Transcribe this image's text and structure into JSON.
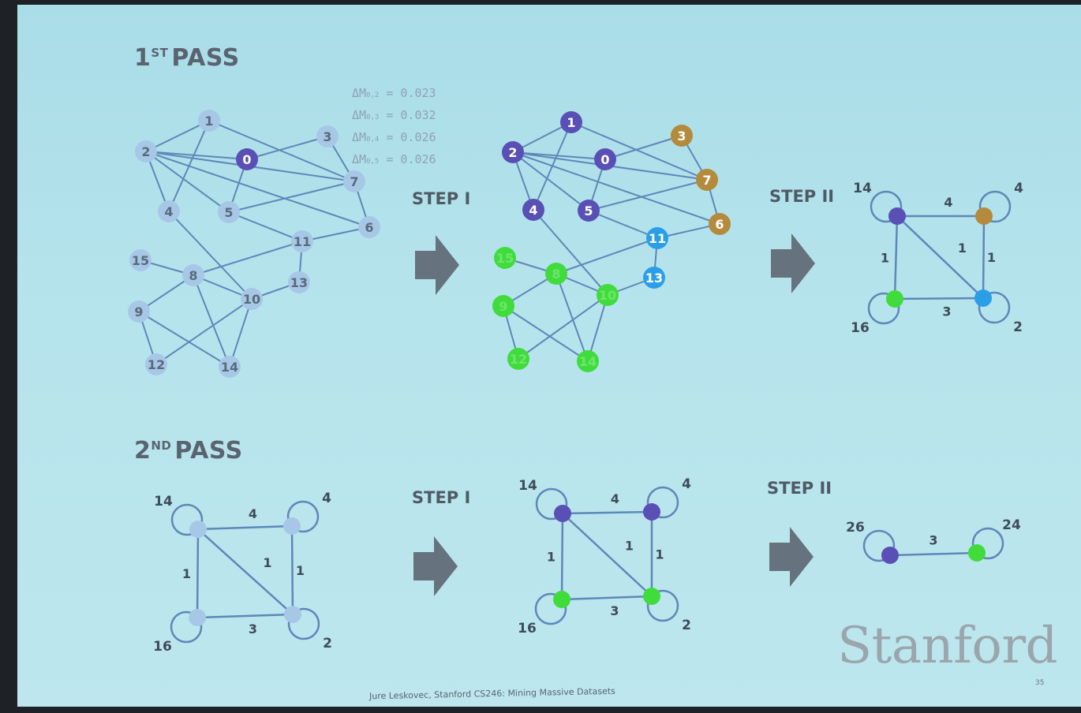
{
  "slide": {
    "pass1_title": "1",
    "pass1_title_sup": "ST",
    "pass1_title_rest": "PASS",
    "pass2_title": "2",
    "pass2_title_sup": "ND",
    "pass2_title_rest": "PASS",
    "step1_label": "STEP I",
    "step2_label": "STEP II",
    "brand": "Stanford",
    "footer": "Jure Leskovec, Stanford CS246: Mining Massive Datasets",
    "page_number": "35"
  },
  "delta_m": [
    {
      "prefix": "ΔM",
      "sub": "0,2",
      "value": "= 0.023"
    },
    {
      "prefix": "ΔM",
      "sub": "0,3",
      "value": "= 0.032"
    },
    {
      "prefix": "ΔM",
      "sub": "0,4",
      "value": "= 0.026"
    },
    {
      "prefix": "ΔM",
      "sub": "0,5",
      "value": "= 0.026"
    }
  ],
  "colors": {
    "edge": "#5f87b8",
    "node_plain": "#a6c8e6",
    "purple": "#5a4fb5",
    "gold": "#b48a3c",
    "blue": "#2b9ee8",
    "green": "#40dc3c",
    "label_text": "#3d4b5a",
    "node_label_dark": "#5a6a7c",
    "node_label_light": "#ffffff"
  },
  "graphs": {
    "pass1_input": {
      "nodes": [
        {
          "id": "0",
          "label": "0",
          "color": "purple"
        },
        {
          "id": "1",
          "label": "1",
          "color": "plain"
        },
        {
          "id": "2",
          "label": "2",
          "color": "plain"
        },
        {
          "id": "3",
          "label": "3",
          "color": "plain"
        },
        {
          "id": "4",
          "label": "4",
          "color": "plain"
        },
        {
          "id": "5",
          "label": "5",
          "color": "plain"
        },
        {
          "id": "6",
          "label": "6",
          "color": "plain"
        },
        {
          "id": "7",
          "label": "7",
          "color": "plain"
        },
        {
          "id": "8",
          "label": "8",
          "color": "plain"
        },
        {
          "id": "9",
          "label": "9",
          "color": "plain"
        },
        {
          "id": "10",
          "label": "10",
          "color": "plain"
        },
        {
          "id": "11",
          "label": "11",
          "color": "plain"
        },
        {
          "id": "12",
          "label": "12",
          "color": "plain"
        },
        {
          "id": "13",
          "label": "13",
          "color": "plain"
        },
        {
          "id": "14",
          "label": "14",
          "color": "plain"
        },
        {
          "id": "15",
          "label": "15",
          "color": "plain"
        }
      ],
      "edges": [
        [
          "2",
          "1"
        ],
        [
          "2",
          "0"
        ],
        [
          "2",
          "4"
        ],
        [
          "2",
          "7"
        ],
        [
          "2",
          "6"
        ],
        [
          "2",
          "5"
        ],
        [
          "1",
          "4"
        ],
        [
          "1",
          "7"
        ],
        [
          "0",
          "3"
        ],
        [
          "0",
          "5"
        ],
        [
          "3",
          "7"
        ],
        [
          "7",
          "5"
        ],
        [
          "7",
          "6"
        ],
        [
          "4",
          "10"
        ],
        [
          "5",
          "11"
        ],
        [
          "11",
          "6"
        ],
        [
          "11",
          "8"
        ],
        [
          "11",
          "13"
        ],
        [
          "8",
          "15"
        ],
        [
          "8",
          "9"
        ],
        [
          "8",
          "10"
        ],
        [
          "8",
          "14"
        ],
        [
          "10",
          "13"
        ],
        [
          "10",
          "12"
        ],
        [
          "10",
          "14"
        ],
        [
          "9",
          "12"
        ],
        [
          "9",
          "14"
        ]
      ]
    },
    "pass1_step1": {
      "nodes": [
        {
          "id": "0",
          "label": "0",
          "color": "purple"
        },
        {
          "id": "1",
          "label": "1",
          "color": "purple"
        },
        {
          "id": "2",
          "label": "2",
          "color": "purple"
        },
        {
          "id": "3",
          "label": "3",
          "color": "gold"
        },
        {
          "id": "4",
          "label": "4",
          "color": "purple"
        },
        {
          "id": "5",
          "label": "5",
          "color": "purple"
        },
        {
          "id": "6",
          "label": "6",
          "color": "gold"
        },
        {
          "id": "7",
          "label": "7",
          "color": "gold"
        },
        {
          "id": "8",
          "label": "8",
          "color": "green"
        },
        {
          "id": "9",
          "label": "9",
          "color": "green"
        },
        {
          "id": "10",
          "label": "10",
          "color": "green"
        },
        {
          "id": "11",
          "label": "11",
          "color": "blue"
        },
        {
          "id": "12",
          "label": "12",
          "color": "green"
        },
        {
          "id": "13",
          "label": "13",
          "color": "blue"
        },
        {
          "id": "14",
          "label": "14",
          "color": "green"
        },
        {
          "id": "15",
          "label": "15",
          "color": "green"
        }
      ],
      "edges": [
        [
          "2",
          "1"
        ],
        [
          "2",
          "0"
        ],
        [
          "2",
          "4"
        ],
        [
          "2",
          "7"
        ],
        [
          "2",
          "6"
        ],
        [
          "2",
          "5"
        ],
        [
          "1",
          "4"
        ],
        [
          "1",
          "7"
        ],
        [
          "0",
          "3"
        ],
        [
          "0",
          "5"
        ],
        [
          "3",
          "7"
        ],
        [
          "7",
          "5"
        ],
        [
          "7",
          "6"
        ],
        [
          "4",
          "10"
        ],
        [
          "5",
          "11"
        ],
        [
          "11",
          "6"
        ],
        [
          "11",
          "8"
        ],
        [
          "11",
          "13"
        ],
        [
          "8",
          "15"
        ],
        [
          "8",
          "9"
        ],
        [
          "8",
          "10"
        ],
        [
          "8",
          "14"
        ],
        [
          "10",
          "13"
        ],
        [
          "10",
          "12"
        ],
        [
          "10",
          "14"
        ],
        [
          "9",
          "12"
        ],
        [
          "9",
          "14"
        ]
      ]
    },
    "pass1_step2": {
      "nodes": [
        {
          "id": "a",
          "label": "14",
          "color": "purple",
          "loop": "top-left"
        },
        {
          "id": "b",
          "label": "4",
          "color": "gold",
          "loop": "top-right"
        },
        {
          "id": "c",
          "label": "16",
          "color": "green",
          "loop": "bottom-left"
        },
        {
          "id": "d",
          "label": "2",
          "color": "blue",
          "loop": "bottom-right"
        }
      ],
      "edges": [
        {
          "from": "a",
          "to": "b",
          "weight": "4"
        },
        {
          "from": "a",
          "to": "c",
          "weight": "1"
        },
        {
          "from": "a",
          "to": "d",
          "weight": "1"
        },
        {
          "from": "b",
          "to": "d",
          "weight": "1"
        },
        {
          "from": "c",
          "to": "d",
          "weight": "3"
        }
      ]
    },
    "pass2_input": {
      "nodes": [
        {
          "id": "a",
          "label": "14",
          "color": "plain",
          "loop": "top-left"
        },
        {
          "id": "b",
          "label": "4",
          "color": "plain",
          "loop": "top-right"
        },
        {
          "id": "c",
          "label": "16",
          "color": "plain",
          "loop": "bottom-left"
        },
        {
          "id": "d",
          "label": "2",
          "color": "plain",
          "loop": "bottom-right"
        }
      ],
      "edges": [
        {
          "from": "a",
          "to": "b",
          "weight": "4"
        },
        {
          "from": "a",
          "to": "c",
          "weight": "1"
        },
        {
          "from": "a",
          "to": "d",
          "weight": "1"
        },
        {
          "from": "b",
          "to": "d",
          "weight": "1"
        },
        {
          "from": "c",
          "to": "d",
          "weight": "3"
        }
      ]
    },
    "pass2_step1": {
      "nodes": [
        {
          "id": "a",
          "label": "14",
          "color": "purple",
          "loop": "top-left"
        },
        {
          "id": "b",
          "label": "4",
          "color": "purple",
          "loop": "top-right"
        },
        {
          "id": "c",
          "label": "16",
          "color": "green",
          "loop": "bottom-left"
        },
        {
          "id": "d",
          "label": "2",
          "color": "green",
          "loop": "bottom-right"
        }
      ],
      "edges": [
        {
          "from": "a",
          "to": "b",
          "weight": "4"
        },
        {
          "from": "a",
          "to": "c",
          "weight": "1"
        },
        {
          "from": "a",
          "to": "d",
          "weight": "1"
        },
        {
          "from": "b",
          "to": "d",
          "weight": "1"
        },
        {
          "from": "c",
          "to": "d",
          "weight": "3"
        }
      ]
    },
    "pass2_step2": {
      "nodes": [
        {
          "id": "p",
          "label": "26",
          "color": "purple",
          "loop": "top-left"
        },
        {
          "id": "q",
          "label": "24",
          "color": "green",
          "loop": "top-right"
        }
      ],
      "edges": [
        {
          "from": "p",
          "to": "q",
          "weight": "3"
        }
      ]
    }
  }
}
